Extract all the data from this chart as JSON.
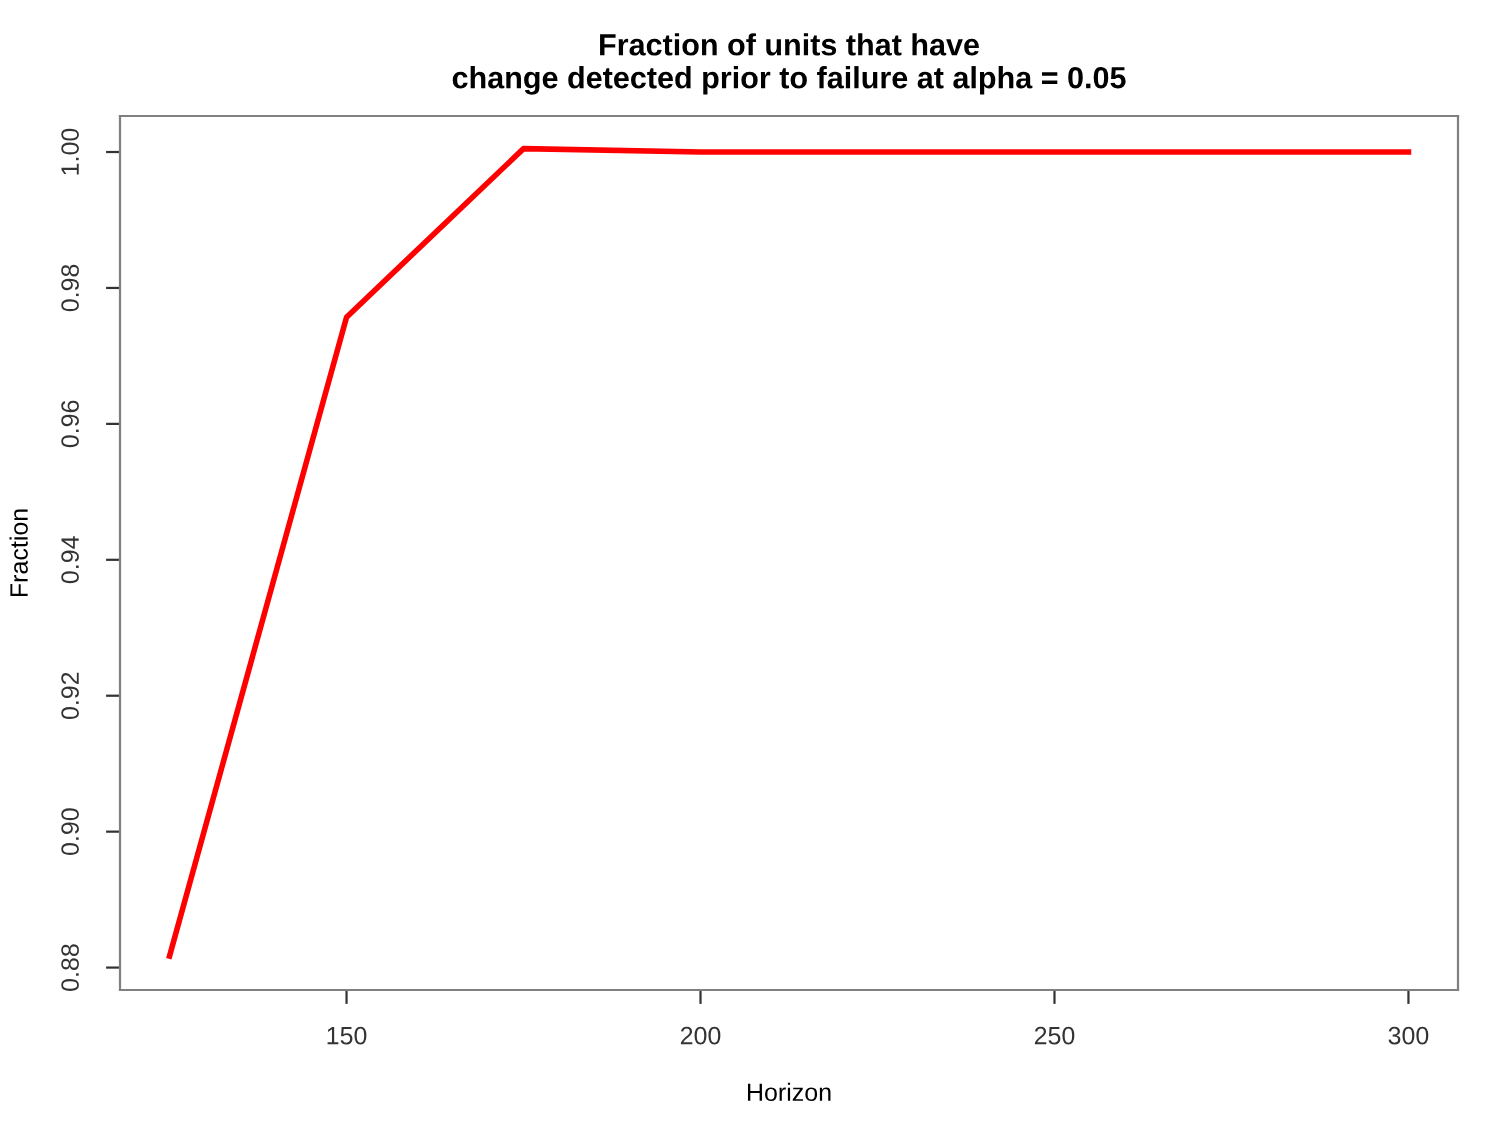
{
  "chart_data": {
    "type": "line",
    "title": "Fraction of units that have\nchange detected prior to failure at alpha = 0.05",
    "xlabel": "Horizon",
    "ylabel": "Fraction",
    "x": [
      125,
      150,
      175,
      200,
      225,
      250,
      275,
      300
    ],
    "series": [
      {
        "color": "#ff0000",
        "values": [
          0.8817,
          0.9757,
          1.0005,
          1.0,
          1.0,
          1.0,
          1.0,
          1.0
        ]
      }
    ],
    "xlim": [
      118,
      307
    ],
    "xticks": [
      150,
      200,
      250,
      300
    ],
    "ylim": [
      0.8767,
      1.0053
    ],
    "yticks": [
      {
        "value": 0.88,
        "label": "0.88"
      },
      {
        "value": 0.9,
        "label": "0.90"
      },
      {
        "value": 0.92,
        "label": "0.92"
      },
      {
        "value": 0.94,
        "label": "0.94"
      },
      {
        "value": 0.96,
        "label": "0.96"
      },
      {
        "value": 0.98,
        "label": "0.98"
      },
      {
        "value": 1.0,
        "label": "1.00"
      }
    ],
    "grid": false,
    "legend": false,
    "line_style": "solid"
  }
}
